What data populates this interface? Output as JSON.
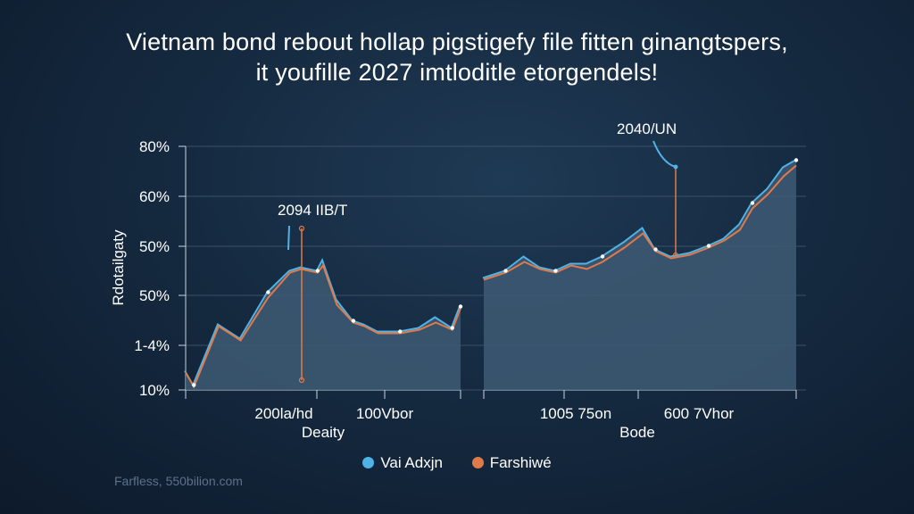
{
  "title": {
    "line1": "Vietnam bond rebout hollap pigstigefy file fitten ginangtspers,",
    "line2": "it youfille 2027 imtloditle etorgendels!"
  },
  "source_note": "Farfless, 550bilion.com",
  "colors": {
    "series_a": "#4fb3e6",
    "series_b": "#e07a4a",
    "area_fill": "#3e5a74",
    "grid": "#3a5068"
  },
  "chart_data": {
    "type": "line",
    "ylabel": "Rdotailgaty",
    "y_ticks": [
      "10%",
      "1-4%",
      "50%",
      "50%",
      "60%",
      "80%"
    ],
    "grid": true,
    "legend_position": "bottom",
    "panels": [
      {
        "name": "left",
        "xlabel": "Deaity",
        "x_tick_labels": [
          "200la/hd",
          "100Vbor"
        ],
        "x": [
          0,
          0.03,
          0.12,
          0.2,
          0.3,
          0.38,
          0.42,
          0.48,
          0.5,
          0.55,
          0.61,
          0.65,
          0.7,
          0.78,
          0.85,
          0.91,
          0.97,
          1.0
        ],
        "series": [
          {
            "name": "Vai Adxjn",
            "values": [
              16,
              12,
              29,
              25,
              38,
              44,
              45,
              44,
              47,
              36,
              30,
              29,
              27,
              27,
              28,
              31,
              28,
              34
            ]
          },
          {
            "name": "Farshiwé",
            "values": [
              16,
              12,
              29,
              25,
              37,
              44,
              45,
              44,
              46,
              35,
              30,
              29,
              27,
              27,
              28,
              30,
              28,
              34
            ]
          }
        ],
        "annotations": [
          {
            "label": "2094 IIB/T"
          }
        ]
      },
      {
        "name": "right",
        "xlabel": "Bode",
        "x_tick_labels": [
          "1005 75on",
          "600 7Vhor"
        ],
        "x": [
          0,
          0.07,
          0.13,
          0.18,
          0.23,
          0.28,
          0.33,
          0.38,
          0.45,
          0.51,
          0.55,
          0.6,
          0.66,
          0.72,
          0.77,
          0.82,
          0.86,
          0.91,
          0.96,
          1.0
        ],
        "series": [
          {
            "name": "Vai Adxjn",
            "values": [
              42,
              44,
              48,
              45,
              44,
              46,
              46,
              48,
              52,
              56,
              50,
              48,
              49,
              51,
              53,
              57,
              63,
              67,
              73,
              75
            ]
          },
          {
            "name": "Farshiwé",
            "values": [
              42,
              44,
              47,
              45,
              44,
              46,
              45,
              47,
              51,
              55,
              50,
              48,
              49,
              51,
              53,
              56,
              62,
              66,
              71,
              74
            ]
          }
        ],
        "annotations": [
          {
            "label": "2040/UN"
          }
        ]
      }
    ]
  }
}
